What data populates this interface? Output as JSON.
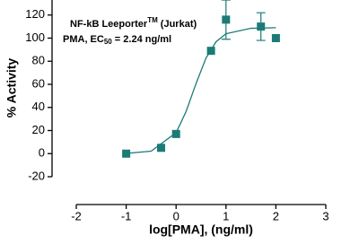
{
  "chart_data": {
    "type": "scatter",
    "title_parts": [
      "NF-kB Leeporter",
      "TM",
      " (Jurkat)"
    ],
    "subtitle_parts": [
      "PMA, EC",
      "50",
      " = 2.24 ng/ml"
    ],
    "x_label": "log[PMA], (ng/ml)",
    "y_label": "% Activity",
    "color": "#1b7b77",
    "subtitle_color": "#e8202a",
    "x": [
      -1,
      -0.3,
      0,
      0.7,
      1,
      1.7,
      2
    ],
    "values": [
      0,
      5,
      17,
      89,
      116,
      110,
      100
    ],
    "errors": [
      null,
      null,
      null,
      null,
      17,
      12,
      null
    ],
    "fit_curve": {
      "x": [
        -1,
        -0.5,
        0,
        0.2,
        0.4,
        0.6,
        0.8,
        1,
        1.5,
        2
      ],
      "values": [
        0.2,
        2.1,
        18.1,
        36.4,
        60.7,
        82.8,
        96.8,
        103.8,
        108.5,
        109
      ]
    },
    "xlim": [
      -2,
      3
    ],
    "xticks": [
      -2,
      -1,
      0,
      1,
      2,
      3
    ],
    "ylim": [
      -20,
      133
    ],
    "yticks": [
      -20,
      0,
      20,
      40,
      60,
      80,
      100,
      120
    ]
  }
}
